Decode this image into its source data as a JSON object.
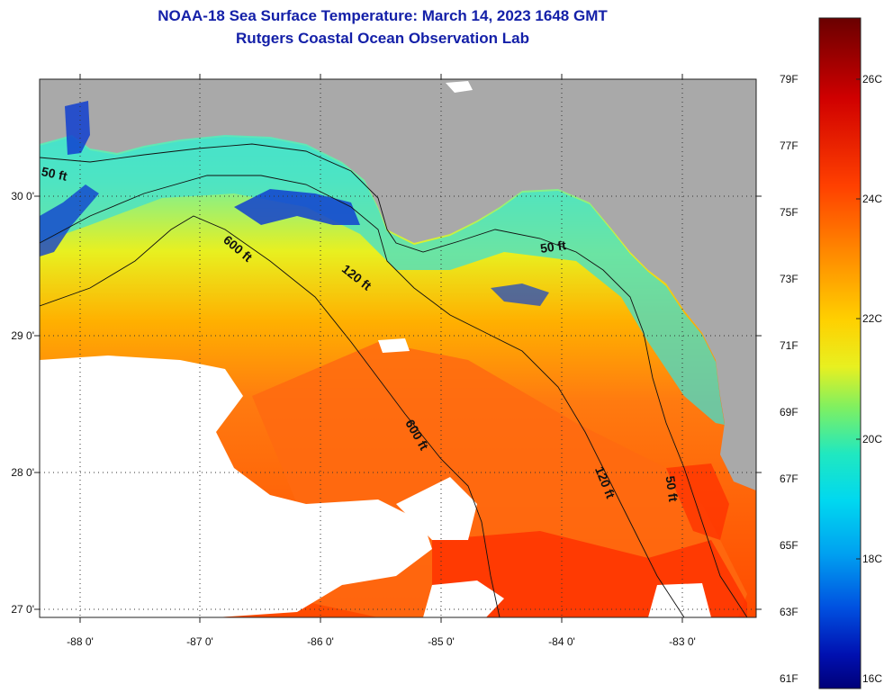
{
  "title": "NOAA-18 Sea Surface Temperature:  March 14, 2023 1648 GMT",
  "subtitle": "Rutgers Coastal Ocean Observation Lab",
  "latitude_labels": [
    "30 0'",
    "29 0'",
    "28 0'",
    "27 0'"
  ],
  "longitude_labels": [
    "-88 0'",
    "-87 0'",
    "-86 0'",
    "-85 0'",
    "-84 0'",
    "-83 0'"
  ],
  "contour_labels": [
    "50 ft",
    "600 ft",
    "120 ft",
    "50 ft",
    "600 ft",
    "120 ft",
    "50 ft"
  ],
  "colorbar": {
    "fahrenheit_labels": [
      "79F",
      "77F",
      "75F",
      "73F",
      "71F",
      "69F",
      "67F",
      "65F",
      "63F",
      "61F"
    ],
    "celsius_labels": [
      "26C",
      "24C",
      "22C",
      "20C",
      "18C",
      "16C"
    ],
    "colors": [
      "#6a0000",
      "#c80000",
      "#ff2000",
      "#ff7800",
      "#ffc000",
      "#f0f000",
      "#a8f040",
      "#40f0b0",
      "#00e8f0",
      "#00a0f0",
      "#0050e0",
      "#0010c0",
      "#000080"
    ]
  },
  "map_colors": {
    "land": "#a9a9a9",
    "cloud": "#ffffff",
    "warm": "#ff6a10",
    "hot": "#ff3000",
    "mild": "#f0e020",
    "cool": "#40e0d0",
    "cold": "#1040d0"
  }
}
